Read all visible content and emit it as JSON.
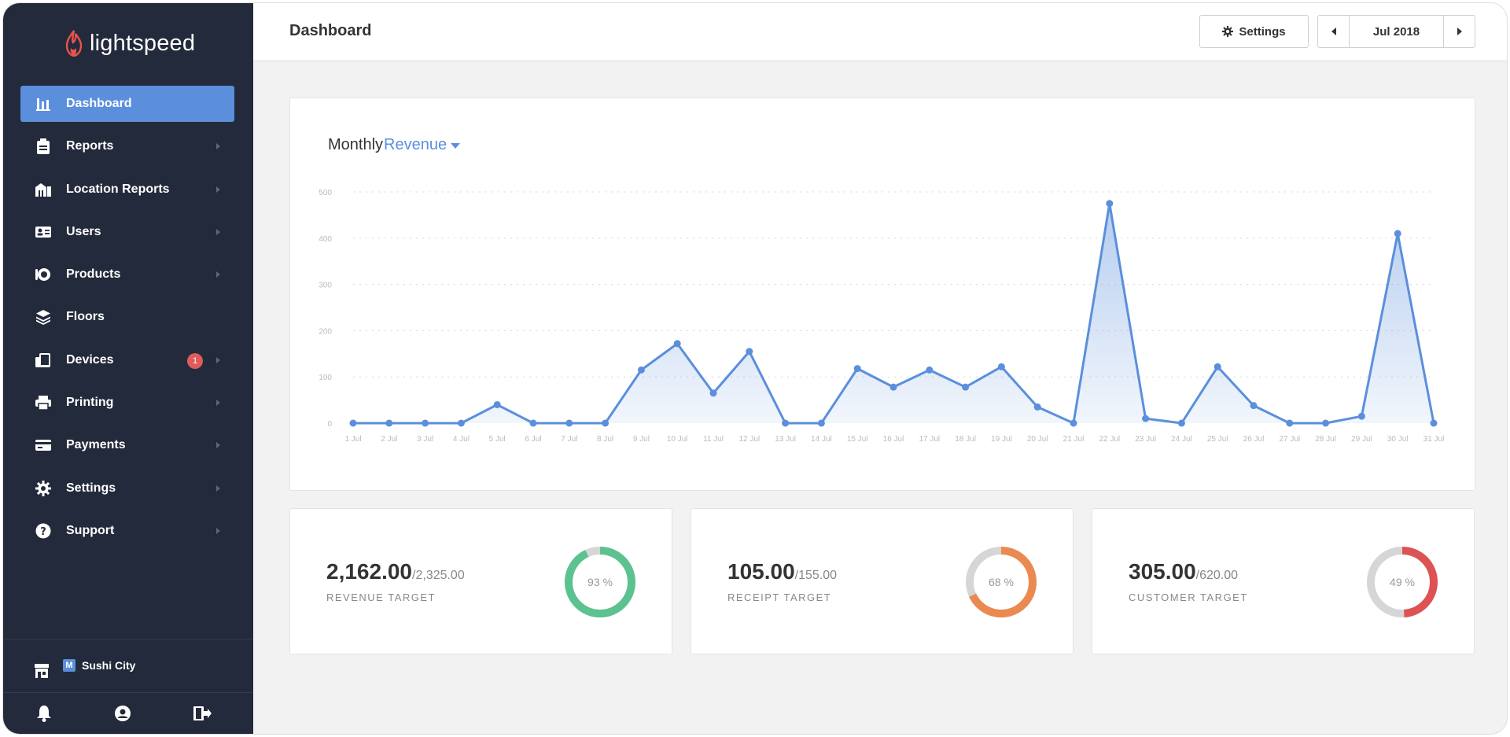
{
  "sidebar": {
    "logo_text": "lightspeed",
    "items": [
      {
        "label": "Dashboard",
        "icon": "bar-chart-icon",
        "active": true,
        "chevron": false
      },
      {
        "label": "Reports",
        "icon": "clipboard-icon",
        "active": false,
        "chevron": true
      },
      {
        "label": "Location Reports",
        "icon": "buildings-icon",
        "active": false,
        "chevron": true
      },
      {
        "label": "Users",
        "icon": "id-card-icon",
        "active": false,
        "chevron": true
      },
      {
        "label": "Products",
        "icon": "dish-icon",
        "active": false,
        "chevron": true
      },
      {
        "label": "Floors",
        "icon": "layers-icon",
        "active": false,
        "chevron": false
      },
      {
        "label": "Devices",
        "icon": "devices-icon",
        "active": false,
        "chevron": true,
        "badge": "1"
      },
      {
        "label": "Printing",
        "icon": "printer-icon",
        "active": false,
        "chevron": true
      },
      {
        "label": "Payments",
        "icon": "credit-card-icon",
        "active": false,
        "chevron": true
      },
      {
        "label": "Settings",
        "icon": "gear-icon",
        "active": false,
        "chevron": true
      },
      {
        "label": "Support",
        "icon": "question-icon",
        "active": false,
        "chevron": true
      }
    ],
    "store": {
      "badge": "M",
      "name": "Sushi City"
    },
    "bottom_icons": [
      "bell-icon",
      "user-icon",
      "logout-icon"
    ]
  },
  "header": {
    "title": "Dashboard",
    "settings_label": "Settings",
    "month_label": "Jul 2018"
  },
  "chart": {
    "title_prefix": "Monthly",
    "metric_label": "Revenue"
  },
  "chart_data": {
    "type": "area",
    "title": "MonthlyRevenue",
    "x": [
      "1 Jul",
      "2 Jul",
      "3 Jul",
      "4 Jul",
      "5 Jul",
      "6 Jul",
      "7 Jul",
      "8 Jul",
      "9 Jul",
      "10 Jul",
      "11 Jul",
      "12 Jul",
      "13 Jul",
      "14 Jul",
      "15 Jul",
      "16 Jul",
      "17 Jul",
      "18 Jul",
      "19 Jul",
      "20 Jul",
      "21 Jul",
      "22 Jul",
      "23 Jul",
      "24 Jul",
      "25 Jul",
      "26 Jul",
      "27 Jul",
      "28 Jul",
      "29 Jul",
      "30 Jul",
      "31 Jul"
    ],
    "values": [
      0,
      0,
      0,
      0,
      40,
      0,
      0,
      0,
      115,
      172,
      65,
      155,
      0,
      0,
      118,
      78,
      115,
      78,
      122,
      35,
      0,
      475,
      10,
      0,
      122,
      38,
      0,
      0,
      15,
      410,
      0
    ],
    "ylim": [
      0,
      500
    ],
    "yticks": [
      0,
      100,
      200,
      300,
      400,
      500
    ],
    "grid": true,
    "color": "#5b8fdc"
  },
  "stats": [
    {
      "value": "2,162.00",
      "total": "/2,325.00",
      "label": "REVENUE TARGET",
      "percent": 93,
      "percent_label": "93 %",
      "color": "#5cc28f"
    },
    {
      "value": "105.00",
      "total": "/155.00",
      "label": "RECEIPT TARGET",
      "percent": 68,
      "percent_label": "68 %",
      "color": "#ea8a50"
    },
    {
      "value": "305.00",
      "total": "/620.00",
      "label": "CUSTOMER TARGET",
      "percent": 49,
      "percent_label": "49 %",
      "color": "#dd5353"
    }
  ]
}
